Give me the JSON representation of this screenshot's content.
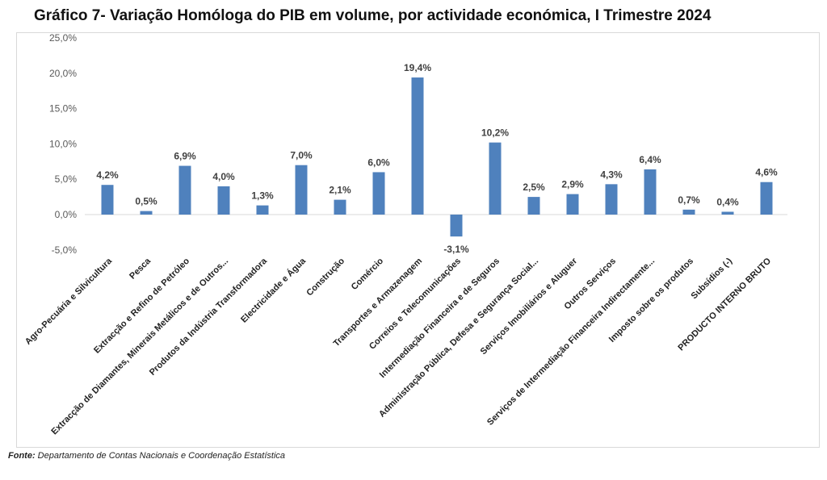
{
  "chart_data": {
    "type": "bar",
    "title": "Gráfico 7- Variação Homóloga do PIB em volume, por actividade económica, I Trimestre 2024",
    "categories": [
      "Agro-Pecuária e Silvicultura",
      "Pesca",
      "Extracção e Refino de Petróleo",
      "Extracção de Diamantes, Minerais Metálicos e de Outros...",
      "Produtos da Indústria Transformadora",
      "Electricidade e Água",
      "Construção",
      "Comércio",
      "Transportes e Armazenagem",
      "Correios e Telecomunicações",
      "Intermediação Financeira e de Seguros",
      "Administração Pública, Defesa e Segurança Social...",
      "Serviços Imobiliários e Aluguer",
      "Outros Serviços",
      "Serviços de Intermediação Financeira Indirectamente...",
      "Imposto sobre os produtos",
      "Subsídios (-)",
      "PRODUCTO INTERNO BRUTO"
    ],
    "values": [
      4.2,
      0.5,
      6.9,
      4.0,
      1.3,
      7.0,
      2.1,
      6.0,
      19.4,
      -3.1,
      10.2,
      2.5,
      2.9,
      4.3,
      6.4,
      0.7,
      0.4,
      4.6
    ],
    "data_labels": [
      "4,2%",
      "0,5%",
      "6,9%",
      "4,0%",
      "1,3%",
      "7,0%",
      "2,1%",
      "6,0%",
      "19,4%",
      "-3,1%",
      "10,2%",
      "2,5%",
      "2,9%",
      "4,3%",
      "6,4%",
      "0,7%",
      "0,4%",
      "4,6%"
    ],
    "ylim": [
      -5,
      25
    ],
    "yticks": [
      25,
      20,
      15,
      10,
      5,
      0,
      -5
    ],
    "ytick_labels": [
      "25,0%",
      "20,0%",
      "15,0%",
      "10,0%",
      "5,0%",
      "0,0%",
      "-5,0%"
    ],
    "xlabel": "",
    "ylabel": "",
    "grid": false,
    "bar_color": "#4f81bd"
  },
  "source": {
    "label": "Fonte:",
    "text": " Departamento de Contas Nacionais e Coordenação Estatística"
  }
}
